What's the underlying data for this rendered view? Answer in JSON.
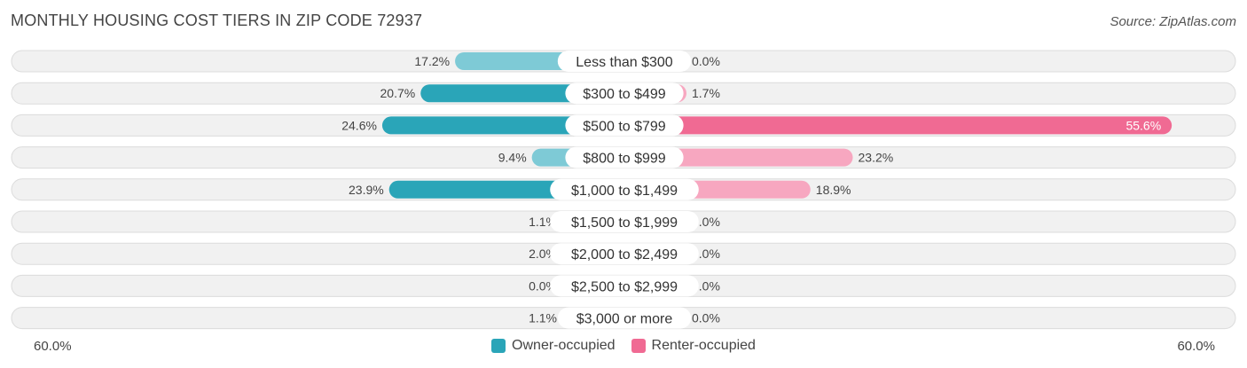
{
  "title": "MONTHLY HOUSING COST TIERS IN ZIP CODE 72937",
  "source": "Source: ZipAtlas.com",
  "colors": {
    "owner": "#2aa5b8",
    "owner_light": "#7ecad6",
    "renter": "#f06a93",
    "renter_light": "#f7a7c0",
    "row_bg": "#f1f1f1",
    "row_border": "#dcdcdc"
  },
  "axis": {
    "left_label": "60.0%",
    "right_label": "60.0%"
  },
  "legend": [
    {
      "label": "Owner-occupied",
      "color": "#2aa5b8"
    },
    {
      "label": "Renter-occupied",
      "color": "#f06a93"
    }
  ],
  "chart_data": {
    "type": "bar",
    "orientation": "diverging-horizontal",
    "title": "MONTHLY HOUSING COST TIERS IN ZIP CODE 72937",
    "xlim": [
      -60,
      60
    ],
    "categories": [
      "Less than $300",
      "$300 to $499",
      "$500 to $799",
      "$800 to $999",
      "$1,000 to $1,499",
      "$1,500 to $1,999",
      "$2,000 to $2,499",
      "$2,500 to $2,999",
      "$3,000 or more"
    ],
    "series": [
      {
        "name": "Owner-occupied",
        "values": [
          17.2,
          20.7,
          24.6,
          9.4,
          23.9,
          1.1,
          2.0,
          0.0,
          1.1
        ],
        "labels": [
          "17.2%",
          "20.7%",
          "24.6%",
          "9.4%",
          "23.9%",
          "1.1%",
          "2.0%",
          "0.0%",
          "1.1%"
        ]
      },
      {
        "name": "Renter-occupied",
        "values": [
          0.0,
          1.7,
          55.6,
          23.2,
          18.9,
          0.0,
          0.0,
          0.0,
          0.0
        ],
        "labels": [
          "0.0%",
          "1.7%",
          "55.6%",
          "23.2%",
          "18.9%",
          "0.0%",
          "0.0%",
          "0.0%",
          "0.0%"
        ]
      }
    ],
    "legend_position": "bottom-center"
  }
}
